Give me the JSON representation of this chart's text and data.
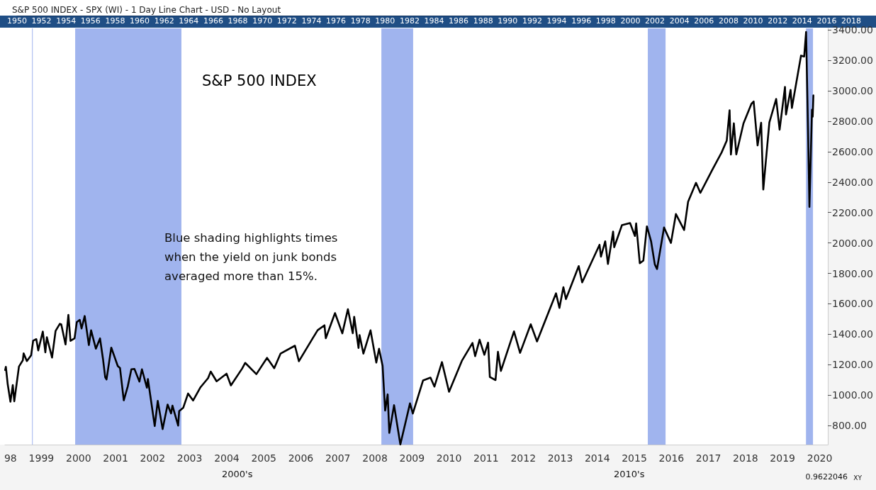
{
  "chart_data": {
    "type": "line",
    "title": "S&P 500 INDEX",
    "subtitle": "S&P 500 INDEX - SPX (WI) - 1 Day Line Chart - USD - No Layout",
    "annotations": [
      "Blue shading highlights times when the yield on junk bonds averaged more than 15%.",
      "0.9622046",
      "XY",
      "2000's",
      "2010's"
    ],
    "x": [
      "1998-07-10",
      "1998-07-17",
      "1998-08-04",
      "1998-08-31",
      "1998-09-23",
      "1998-10-08",
      "1998-11-23",
      "1998-12-31",
      "1999-01-08",
      "1999-02-09",
      "1999-03-23",
      "1999-04-12",
      "1999-05-13",
      "1999-06-01",
      "1999-07-16",
      "1999-08-10",
      "1999-08-25",
      "1999-10-15",
      "1999-11-19",
      "1999-12-31",
      "2000-01-14",
      "2000-02-25",
      "2000-03-24",
      "2000-04-14",
      "2000-05-24",
      "2000-06-15",
      "2000-07-14",
      "2000-08-01",
      "2000-09-01",
      "2000-10-12",
      "2000-11-03",
      "2000-12-20",
      "2001-01-30",
      "2001-02-28",
      "2001-03-22",
      "2001-04-04",
      "2001-05-21",
      "2001-07-24",
      "2001-08-15",
      "2001-09-21",
      "2001-10-31",
      "2001-12-05",
      "2002-01-04",
      "2002-02-22",
      "2002-03-19",
      "2002-05-07",
      "2002-05-17",
      "2002-07-23",
      "2002-08-22",
      "2002-10-09",
      "2002-11-27",
      "2002-12-31",
      "2003-01-14",
      "2003-03-11",
      "2003-03-21",
      "2003-04-30",
      "2003-06-17",
      "2003-08-05",
      "2003-10-15",
      "2003-12-31",
      "2004-01-26",
      "2004-03-24",
      "2004-06-30",
      "2004-08-12",
      "2004-11-30",
      "2004-12-31",
      "2005-04-20",
      "2005-08-03",
      "2005-10-13",
      "2005-12-14",
      "2006-05-05",
      "2006-06-13",
      "2006-10-31",
      "2006-12-15",
      "2007-02-20",
      "2007-03-05",
      "2007-06-04",
      "2007-08-15",
      "2007-10-09",
      "2007-11-26",
      "2007-12-10",
      "2008-01-22",
      "2008-02-01",
      "2008-03-10",
      "2008-05-19",
      "2008-07-15",
      "2008-08-11",
      "2008-09-15",
      "2008-10-10",
      "2008-11-04",
      "2008-11-20",
      "2009-01-06",
      "2009-03-09",
      "2009-06-12",
      "2009-07-10",
      "2009-10-19",
      "2009-12-31",
      "2010-02-08",
      "2010-04-23",
      "2010-07-02",
      "2010-11-05",
      "2011-02-18",
      "2011-03-16",
      "2011-04-29",
      "2011-06-15",
      "2011-07-22",
      "2011-08-08",
      "2011-10-03",
      "2011-10-27",
      "2011-11-25",
      "2012-04-02",
      "2012-06-01",
      "2012-09-14",
      "2012-11-15",
      "2013-05-21",
      "2013-06-24",
      "2013-08-02",
      "2013-08-27",
      "2013-12-31",
      "2014-02-03",
      "2014-07-24",
      "2014-08-07",
      "2014-09-18",
      "2014-10-15",
      "2014-12-05",
      "2014-12-16",
      "2015-03-02",
      "2015-05-21",
      "2015-07-08",
      "2015-07-20",
      "2015-08-25",
      "2015-09-29",
      "2015-11-03",
      "2015-12-14",
      "2016-01-20",
      "2016-02-11",
      "2016-04-20",
      "2016-06-27",
      "2016-08-15",
      "2016-11-04",
      "2016-12-13",
      "2017-03-01",
      "2017-04-13",
      "2017-08-08",
      "2017-11-08",
      "2017-12-29",
      "2018-01-26",
      "2018-02-08",
      "2018-03-09",
      "2018-04-02",
      "2018-06-12",
      "2018-08-29",
      "2018-09-20",
      "2018-10-29",
      "2018-12-03",
      "2018-12-24",
      "2019-02-22",
      "2019-04-30",
      "2019-06-03",
      "2019-07-26",
      "2019-08-05",
      "2019-09-19",
      "2019-10-02",
      "2019-12-31",
      "2020-01-31",
      "2020-02-19",
      "2020-03-09",
      "2020-03-23",
      "2020-04-01",
      "2020-04-17",
      "2020-04-24",
      "2020-05-01"
    ],
    "series": [
      {
        "color": "#000000",
        "values": [
          1165,
          1186,
          1072,
          957,
          1066,
          960,
          1188,
          1229,
          1275,
          1224,
          1262,
          1358,
          1368,
          1294,
          1418,
          1281,
          1381,
          1247,
          1422,
          1469,
          1465,
          1333,
          1527,
          1357,
          1373,
          1480,
          1495,
          1438,
          1520,
          1329,
          1426,
          1305,
          1373,
          1239,
          1117,
          1103,
          1312,
          1191,
          1178,
          966,
          1059,
          1170,
          1172,
          1089,
          1170,
          1049,
          1106,
          797,
          962,
          777,
          938,
          880,
          931,
          800,
          895,
          917,
          1011,
          965,
          1050,
          1112,
          1155,
          1091,
          1141,
          1064,
          1174,
          1212,
          1138,
          1245,
          1177,
          1273,
          1325,
          1223,
          1378,
          1427,
          1459,
          1374,
          1539,
          1406,
          1565,
          1407,
          1515,
          1310,
          1395,
          1273,
          1426,
          1214,
          1305,
          1192,
          899,
          1005,
          752,
          934,
          676,
          946,
          879,
          1097,
          1115,
          1056,
          1217,
          1022,
          1225,
          1343,
          1256,
          1364,
          1265,
          1345,
          1119,
          1099,
          1285,
          1159,
          1419,
          1278,
          1466,
          1353,
          1669,
          1573,
          1709,
          1631,
          1848,
          1741,
          1988,
          1910,
          2011,
          1862,
          2075,
          1972,
          2117,
          2131,
          2046,
          2128,
          1867,
          1884,
          2109,
          2012,
          1859,
          1829,
          2102,
          2000,
          2190,
          2085,
          2271,
          2395,
          2329,
          2480,
          2594,
          2673,
          2872,
          2581,
          2786,
          2582,
          2786,
          2914,
          2930,
          2641,
          2790,
          2351,
          2792,
          2946,
          2744,
          3025,
          2844,
          3006,
          2887,
          3231,
          3225,
          3386,
          2746,
          2237,
          2470,
          2875,
          2830,
          2970
        ]
      }
    ],
    "xlim": [
      "1998-07-08",
      "2020-09-20"
    ],
    "xticks": [
      {
        "value": "1998-09-01",
        "label": "98"
      },
      {
        "value": "1999-07-02",
        "label": "1999"
      },
      {
        "value": "2000-07-02",
        "label": "2000"
      },
      {
        "value": "2001-07-02",
        "label": "2001"
      },
      {
        "value": "2002-07-02",
        "label": "2002"
      },
      {
        "value": "2003-07-02",
        "label": "2003"
      },
      {
        "value": "2004-07-02",
        "label": "2004"
      },
      {
        "value": "2005-07-02",
        "label": "2005"
      },
      {
        "value": "2006-07-02",
        "label": "2006"
      },
      {
        "value": "2007-07-02",
        "label": "2007"
      },
      {
        "value": "2008-07-02",
        "label": "2008"
      },
      {
        "value": "2009-07-02",
        "label": "2009"
      },
      {
        "value": "2010-07-02",
        "label": "2010"
      },
      {
        "value": "2011-07-02",
        "label": "2011"
      },
      {
        "value": "2012-07-02",
        "label": "2012"
      },
      {
        "value": "2013-07-02",
        "label": "2013"
      },
      {
        "value": "2014-07-02",
        "label": "2014"
      },
      {
        "value": "2015-07-02",
        "label": "2015"
      },
      {
        "value": "2016-07-02",
        "label": "2016"
      },
      {
        "value": "2017-07-02",
        "label": "2017"
      },
      {
        "value": "2018-07-02",
        "label": "2018"
      },
      {
        "value": "2019-07-02",
        "label": "2019"
      },
      {
        "value": "2020-07-02",
        "label": "2020"
      }
    ],
    "x2lim": [
      1950,
      2018
    ],
    "x2ticks": [
      1950,
      1952,
      1954,
      1956,
      1958,
      1960,
      1962,
      1964,
      1966,
      1968,
      1970,
      1972,
      1974,
      1976,
      1978,
      1980,
      1982,
      1984,
      1986,
      1988,
      1990,
      1992,
      1994,
      1996,
      1998,
      2000,
      2002,
      2004,
      2006,
      2008,
      2010,
      2012,
      2014,
      2016,
      2018
    ],
    "ylim": [
      675,
      3410
    ],
    "yticks": [
      {
        "value": 800,
        "label": "800.00"
      },
      {
        "value": 1000,
        "label": "1000.00"
      },
      {
        "value": 1200,
        "label": "1200.00"
      },
      {
        "value": 1400,
        "label": "1400.00"
      },
      {
        "value": 1600,
        "label": "1600.00"
      },
      {
        "value": 1800,
        "label": "1800.00"
      },
      {
        "value": 2000,
        "label": "2000.00"
      },
      {
        "value": 2200,
        "label": "2200.00"
      },
      {
        "value": 2400,
        "label": "2400.00"
      },
      {
        "value": 2600,
        "label": "2600.00"
      },
      {
        "value": 2800,
        "label": "2800.00"
      },
      {
        "value": 3000,
        "label": "3000.00"
      },
      {
        "value": 3200,
        "label": "3200.00"
      },
      {
        "value": 3400,
        "label": "3400.00"
      }
    ],
    "bands": [
      {
        "axis": "x",
        "from": "1999-04-01",
        "to": "1999-04-08",
        "color": "#a0b4ee"
      },
      {
        "axis": "x",
        "from": "2000-05-30",
        "to": "2003-04-12",
        "color": "#a0b4ee"
      },
      {
        "axis": "x",
        "from": "2008-09-03",
        "to": "2009-07-13",
        "color": "#a0b4ee"
      },
      {
        "axis": "x",
        "from": "2015-11-12",
        "to": "2016-05-05",
        "color": "#a0b4ee"
      },
      {
        "axis": "x",
        "from": "2020-02-18",
        "to": "2020-04-27",
        "color": "#a0b4ee"
      }
    ],
    "grid": false,
    "marker": "none",
    "line_style": "solid"
  }
}
